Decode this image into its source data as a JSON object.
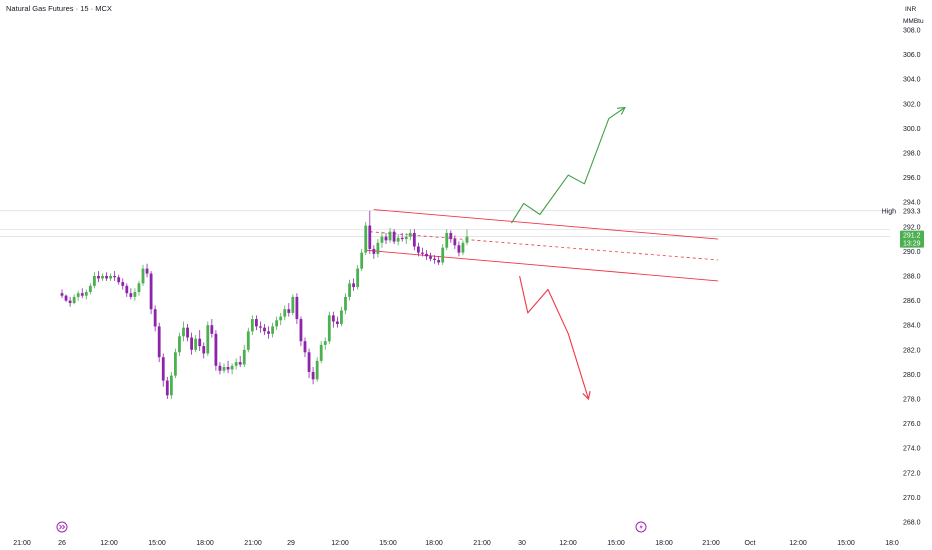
{
  "header": {
    "title": "Natural Gas Futures · 15 · MCX"
  },
  "axis_unit": {
    "line1": "INR",
    "line2": "MMBtu"
  },
  "colors": {
    "up": "#26a69a",
    "up_body": "#4caf50",
    "down": "#8e24aa",
    "channel": "#f23645",
    "bull_arrow": "#43a047",
    "bear_arrow": "#f23645",
    "grid": "#e0e3eb",
    "event_icon": "#9c27b0"
  },
  "price_labels": {
    "high_label": "High",
    "high_value": "293.3",
    "last_price": "291.2",
    "countdown": "13:29",
    "last_value": 291.2
  },
  "icons": {
    "left_event": "double-chevron-icon",
    "right_event": "lightning-icon"
  },
  "chart_data": {
    "type": "candlestick",
    "title": "Natural Gas Futures · 15 · MCX",
    "y_unit": "INR / MMBtu",
    "ylim": [
      267,
      309
    ],
    "y_ticks": [
      268.0,
      270.0,
      272.0,
      274.0,
      276.0,
      278.0,
      280.0,
      282.0,
      284.0,
      286.0,
      288.0,
      290.0,
      292.0,
      294.0,
      296.0,
      298.0,
      300.0,
      302.0,
      304.0,
      306.0,
      308.0
    ],
    "x_ticks": [
      "21:00",
      "26",
      "12:00",
      "15:00",
      "18:00",
      "21:00",
      "29",
      "12:00",
      "15:00",
      "18:00",
      "21:00",
      "30",
      "12:00",
      "15:00",
      "18:00",
      "21:00",
      "Oct",
      "12:00",
      "15:00",
      "18:0"
    ],
    "candles": [
      [
        286.6,
        286.9,
        286.2,
        286.4
      ],
      [
        286.4,
        286.5,
        285.9,
        286.0
      ],
      [
        286.0,
        286.3,
        285.5,
        285.8
      ],
      [
        285.8,
        286.5,
        285.7,
        286.3
      ],
      [
        286.3,
        286.8,
        286.0,
        286.6
      ],
      [
        286.6,
        287.0,
        286.2,
        286.4
      ],
      [
        286.4,
        286.9,
        286.1,
        286.7
      ],
      [
        286.7,
        287.4,
        286.5,
        287.2
      ],
      [
        287.2,
        288.3,
        287.0,
        288.0
      ],
      [
        288.0,
        288.4,
        287.5,
        287.8
      ],
      [
        287.8,
        288.2,
        287.6,
        288.0
      ],
      [
        288.0,
        288.3,
        287.6,
        287.8
      ],
      [
        287.8,
        288.2,
        287.6,
        288.0
      ],
      [
        288.0,
        288.4,
        287.6,
        287.9
      ],
      [
        287.9,
        288.1,
        287.3,
        287.5
      ],
      [
        287.5,
        287.8,
        286.9,
        287.2
      ],
      [
        287.2,
        287.4,
        286.3,
        286.6
      ],
      [
        286.6,
        287.0,
        286.1,
        286.3
      ],
      [
        286.3,
        287.0,
        286.0,
        286.7
      ],
      [
        286.7,
        287.6,
        286.4,
        287.4
      ],
      [
        287.4,
        288.9,
        287.2,
        288.6
      ],
      [
        288.6,
        289.0,
        287.9,
        288.2
      ],
      [
        288.2,
        288.4,
        284.9,
        285.3
      ],
      [
        285.3,
        285.6,
        283.5,
        283.9
      ],
      [
        283.9,
        284.2,
        281.0,
        281.4
      ],
      [
        281.4,
        281.7,
        279.0,
        279.5
      ],
      [
        279.5,
        279.8,
        278.0,
        278.3
      ],
      [
        278.3,
        280.2,
        278.0,
        279.9
      ],
      [
        279.9,
        282.1,
        279.7,
        281.8
      ],
      [
        281.8,
        283.4,
        281.5,
        283.1
      ],
      [
        283.1,
        284.3,
        282.7,
        283.8
      ],
      [
        283.8,
        284.1,
        282.7,
        283.0
      ],
      [
        283.0,
        283.4,
        281.6,
        282.0
      ],
      [
        282.0,
        283.2,
        281.8,
        282.9
      ],
      [
        282.9,
        283.6,
        281.9,
        282.3
      ],
      [
        282.3,
        282.6,
        281.3,
        281.7
      ],
      [
        281.7,
        284.3,
        281.5,
        284.0
      ],
      [
        284.0,
        284.5,
        283.0,
        283.3
      ],
      [
        283.3,
        283.6,
        280.3,
        280.7
      ],
      [
        280.7,
        281.0,
        280.0,
        280.3
      ],
      [
        280.3,
        280.9,
        280.1,
        280.6
      ],
      [
        280.6,
        281.1,
        280.1,
        280.4
      ],
      [
        280.4,
        280.9,
        280.0,
        280.7
      ],
      [
        280.7,
        281.3,
        280.4,
        281.0
      ],
      [
        281.0,
        281.5,
        280.6,
        280.8
      ],
      [
        280.8,
        282.4,
        280.6,
        282.0
      ],
      [
        282.0,
        283.8,
        281.8,
        283.5
      ],
      [
        283.5,
        284.8,
        283.2,
        284.5
      ],
      [
        284.5,
        284.8,
        283.6,
        283.9
      ],
      [
        283.9,
        284.3,
        283.4,
        283.8
      ],
      [
        283.8,
        284.1,
        283.2,
        283.5
      ],
      [
        283.5,
        283.9,
        282.9,
        283.3
      ],
      [
        283.3,
        284.2,
        283.0,
        283.9
      ],
      [
        283.9,
        284.7,
        283.6,
        284.4
      ],
      [
        284.4,
        285.0,
        284.0,
        284.7
      ],
      [
        284.7,
        285.6,
        284.4,
        285.3
      ],
      [
        285.3,
        285.8,
        284.7,
        285.0
      ],
      [
        285.0,
        286.5,
        284.8,
        286.3
      ],
      [
        286.3,
        286.6,
        284.1,
        284.5
      ],
      [
        284.5,
        284.7,
        282.3,
        282.7
      ],
      [
        282.7,
        283.0,
        281.4,
        281.8
      ],
      [
        281.8,
        282.1,
        279.7,
        280.2
      ],
      [
        280.2,
        280.6,
        279.2,
        279.6
      ],
      [
        279.6,
        281.4,
        279.4,
        281.1
      ],
      [
        281.1,
        282.7,
        280.9,
        282.4
      ],
      [
        282.4,
        283.0,
        282.0,
        282.7
      ],
      [
        282.7,
        285.1,
        282.5,
        284.8
      ],
      [
        284.8,
        285.1,
        283.8,
        284.3
      ],
      [
        284.3,
        284.7,
        283.8,
        284.1
      ],
      [
        284.1,
        285.5,
        283.9,
        285.2
      ],
      [
        285.2,
        286.6,
        284.9,
        286.3
      ],
      [
        286.3,
        287.7,
        286.0,
        287.4
      ],
      [
        287.4,
        287.8,
        286.8,
        287.1
      ],
      [
        287.1,
        288.9,
        286.9,
        288.6
      ],
      [
        288.6,
        290.2,
        288.4,
        289.9
      ],
      [
        289.9,
        292.4,
        289.7,
        292.1
      ],
      [
        292.1,
        293.3,
        289.8,
        290.2
      ],
      [
        290.2,
        290.5,
        289.4,
        289.8
      ],
      [
        289.8,
        291.0,
        289.5,
        290.7
      ],
      [
        290.7,
        291.6,
        290.3,
        291.2
      ],
      [
        291.2,
        291.5,
        290.6,
        290.9
      ],
      [
        290.9,
        291.9,
        290.7,
        291.6
      ],
      [
        291.6,
        291.8,
        290.6,
        290.8
      ],
      [
        290.8,
        291.4,
        290.5,
        291.1
      ],
      [
        291.1,
        291.5,
        290.8,
        291.0
      ],
      [
        291.0,
        291.5,
        290.6,
        291.2
      ],
      [
        291.2,
        291.8,
        290.9,
        291.5
      ],
      [
        291.5,
        291.8,
        290.1,
        290.4
      ],
      [
        290.4,
        290.7,
        289.6,
        289.9
      ],
      [
        289.9,
        290.3,
        289.6,
        289.8
      ],
      [
        289.8,
        290.1,
        289.3,
        289.6
      ],
      [
        289.6,
        289.9,
        289.2,
        289.4
      ],
      [
        289.4,
        289.7,
        289.0,
        289.3
      ],
      [
        289.3,
        289.6,
        288.9,
        289.1
      ],
      [
        289.1,
        290.6,
        288.9,
        290.3
      ],
      [
        290.3,
        291.8,
        290.1,
        291.5
      ],
      [
        291.5,
        291.7,
        290.7,
        291.0
      ],
      [
        291.0,
        291.3,
        290.2,
        290.5
      ],
      [
        290.5,
        290.8,
        289.6,
        289.9
      ],
      [
        289.9,
        290.9,
        289.7,
        290.7
      ],
      [
        290.7,
        291.8,
        290.5,
        291.2
      ]
    ],
    "time_ticks_per_candle": {
      "21:00": 2.3,
      "26": 7.2
    },
    "annotations": {
      "descending_channel": {
        "upper": [
          [
            77,
            293.4
          ],
          [
            162,
            291.0
          ]
        ],
        "lower": [
          [
            75,
            290.1
          ],
          [
            162,
            287.6
          ]
        ],
        "mid": [
          [
            76,
            291.6
          ],
          [
            162,
            289.3
          ]
        ]
      },
      "bullish_projection": [
        [
          111,
          292.3
        ],
        [
          114,
          293.9
        ],
        [
          118,
          293.0
        ],
        [
          125,
          296.2
        ],
        [
          129,
          295.5
        ],
        [
          135,
          300.8
        ],
        [
          139,
          301.7
        ]
      ],
      "bearish_projection": [
        [
          113,
          288.0
        ],
        [
          115,
          285.0
        ],
        [
          120,
          286.9
        ],
        [
          125,
          283.3
        ],
        [
          130,
          278.0
        ]
      ]
    }
  }
}
